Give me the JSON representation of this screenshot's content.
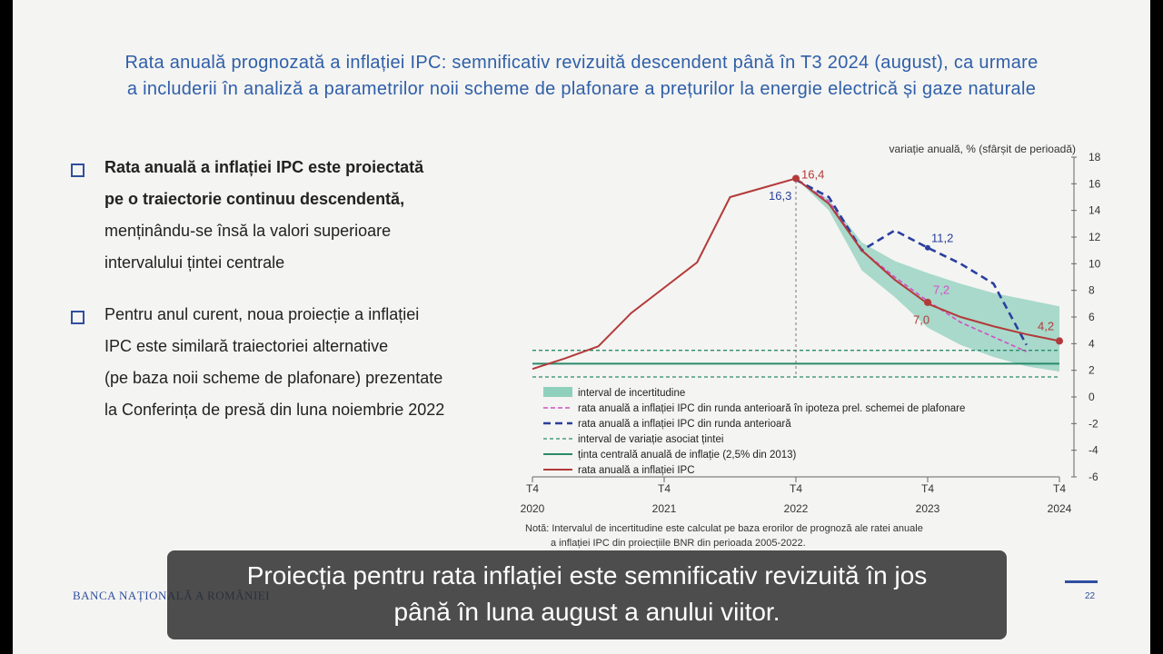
{
  "slide": {
    "title_line1": "Rata anuală prognozată a inflației IPC: semnificativ revizuită descendent până în T3 2024 (august), ca urmare",
    "title_line2": "a includerii în analiză a parametrilor noii scheme de plafonare a prețurilor la energie electrică și gaze naturale",
    "bullets": [
      {
        "lines": [
          "Rata anuală a inflației IPC este proiectată",
          "pe o traiectorie continuu descendentă,",
          "menținându-se însă la valori superioare",
          "intervalului țintei centrale"
        ]
      },
      {
        "lines": [
          "Pentru anul curent, noua proiecție a inflației",
          "IPC este similară traiectoriei alternative",
          "(pe baza noii scheme de plafonare) prezentate",
          "la Conferința de presă din luna noiembrie 2022"
        ]
      }
    ],
    "note_line1": "Notă: Intervalul de incertitudine este calculat pe baza erorilor de prognoză ale ratei anuale",
    "note_line2": "a inflației IPC din proiecțiile BNR din perioada 2005-2022.",
    "footer_logo": "BANCA NAȚIONALĂ A ROMÂNIEI",
    "page_number": "22"
  },
  "subtitle": {
    "line1": "Proiecția pentru rata inflației este semnificativ revizuită în jos",
    "line2": "până în luna august a anului viitor."
  },
  "chart_data": {
    "type": "line",
    "ylabel": "variație anuală, % (sfârșit de perioadă)",
    "ylim": [
      -6,
      18
    ],
    "yticks": [
      18,
      16,
      14,
      12,
      10,
      8,
      6,
      4,
      2,
      0,
      -2,
      -4,
      -6
    ],
    "xticks": [
      {
        "q": "T4",
        "year": "2020"
      },
      {
        "q": "T4",
        "year": "2021"
      },
      {
        "q": "T4",
        "year": "2022"
      },
      {
        "q": "T4",
        "year": "2023"
      },
      {
        "q": "T4",
        "year": "2024"
      }
    ],
    "x_range": [
      0,
      16
    ],
    "colors": {
      "band": "#8fd0bc",
      "actual": "#b23a3a",
      "prev_plafon": "#d24fc8",
      "prev": "#2a3f9e",
      "target_interval": "#2a8a6a",
      "target": "#2a8a6a"
    },
    "series": [
      {
        "key": "actual",
        "name": "rata anuală a inflației IPC",
        "x": [
          0,
          1,
          2,
          3,
          4,
          5,
          6,
          7,
          8,
          9,
          10,
          11,
          12,
          13,
          14,
          15,
          16
        ],
        "y": [
          2.1,
          2.9,
          3.8,
          6.3,
          8.2,
          10.1,
          15.0,
          15.7,
          16.4,
          14.5,
          11.0,
          8.8,
          7.0,
          6.0,
          5.3,
          4.7,
          4.2
        ]
      },
      {
        "key": "prev_plafon",
        "name": "rata anuală a inflației IPC din runda anterioară în ipoteza prel. schemei de plafonare",
        "x": [
          8,
          9,
          10,
          11,
          12,
          13,
          14,
          15
        ],
        "y": [
          16.3,
          14.7,
          11.0,
          9.0,
          7.2,
          5.6,
          4.5,
          3.4
        ]
      },
      {
        "key": "prev",
        "name": "rata anuală a inflației IPC din runda anterioară",
        "x": [
          8,
          9,
          10,
          11,
          12,
          13,
          14,
          15
        ],
        "y": [
          16.3,
          15.0,
          11.0,
          12.5,
          11.2,
          10.0,
          8.5,
          3.9
        ]
      }
    ],
    "uncertainty_band": {
      "name": "interval de incertitudine",
      "x": [
        8,
        9,
        10,
        11,
        12,
        13,
        14,
        15,
        16
      ],
      "upper": [
        16.4,
        14.8,
        11.6,
        10.2,
        9.3,
        8.5,
        7.8,
        7.3,
        6.8
      ],
      "lower": [
        16.4,
        14.0,
        9.5,
        7.5,
        5.2,
        3.9,
        3.0,
        2.3,
        1.9
      ]
    },
    "target": {
      "name": "ținta centrală anuală de inflație (2,5% din 2013)",
      "value": 2.5
    },
    "target_interval": {
      "name": "interval de variație asociat țintei",
      "low": 1.5,
      "high": 3.5
    },
    "annotations": [
      {
        "text": "16,4",
        "x": 8,
        "y": 16.4
      },
      {
        "text": "16,3",
        "x": 8,
        "y": 16.3
      },
      {
        "text": "11,2",
        "x": 12,
        "y": 11.2
      },
      {
        "text": "7,2",
        "x": 12,
        "y": 7.2
      },
      {
        "text": "7,0",
        "x": 12,
        "y": 7.0
      },
      {
        "text": "4,2",
        "x": 16,
        "y": 4.2
      }
    ],
    "legend_order": [
      "band",
      "prev_plafon",
      "prev",
      "target_interval",
      "target",
      "actual"
    ],
    "legend_placement": "bottom-left",
    "grid": false
  }
}
